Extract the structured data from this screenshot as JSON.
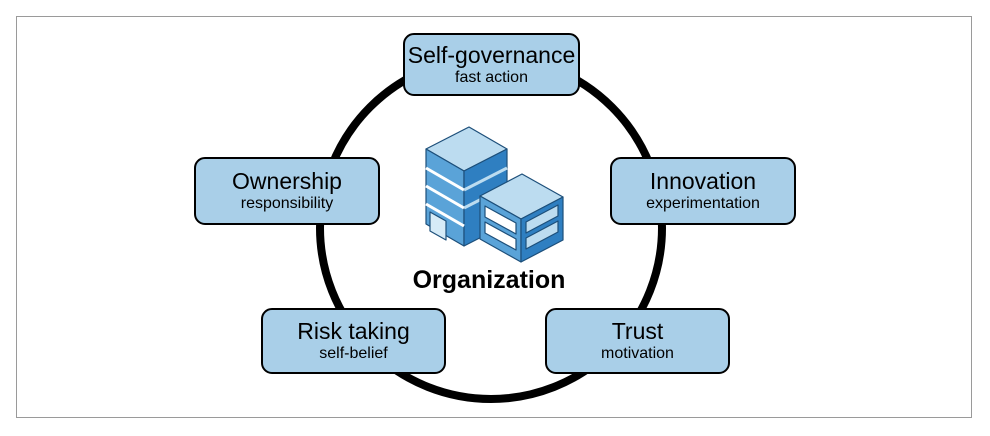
{
  "center": {
    "label": "Organization",
    "icon": "office-building-icon"
  },
  "nodes": {
    "self_governance": {
      "title": "Self-governance",
      "subtitle": "fast action"
    },
    "innovation": {
      "title": "Innovation",
      "subtitle": "experimentation"
    },
    "trust": {
      "title": "Trust",
      "subtitle": "motivation"
    },
    "risk_taking": {
      "title": "Risk taking",
      "subtitle": "self-belief"
    },
    "ownership": {
      "title": "Ownership",
      "subtitle": "responsibility"
    }
  },
  "colors": {
    "box_fill": "#a9cfe8",
    "outline": "#000000",
    "building_light": "#bcdcf0",
    "building_mid": "#5aa3d8",
    "building_dark": "#2f7fc1"
  }
}
